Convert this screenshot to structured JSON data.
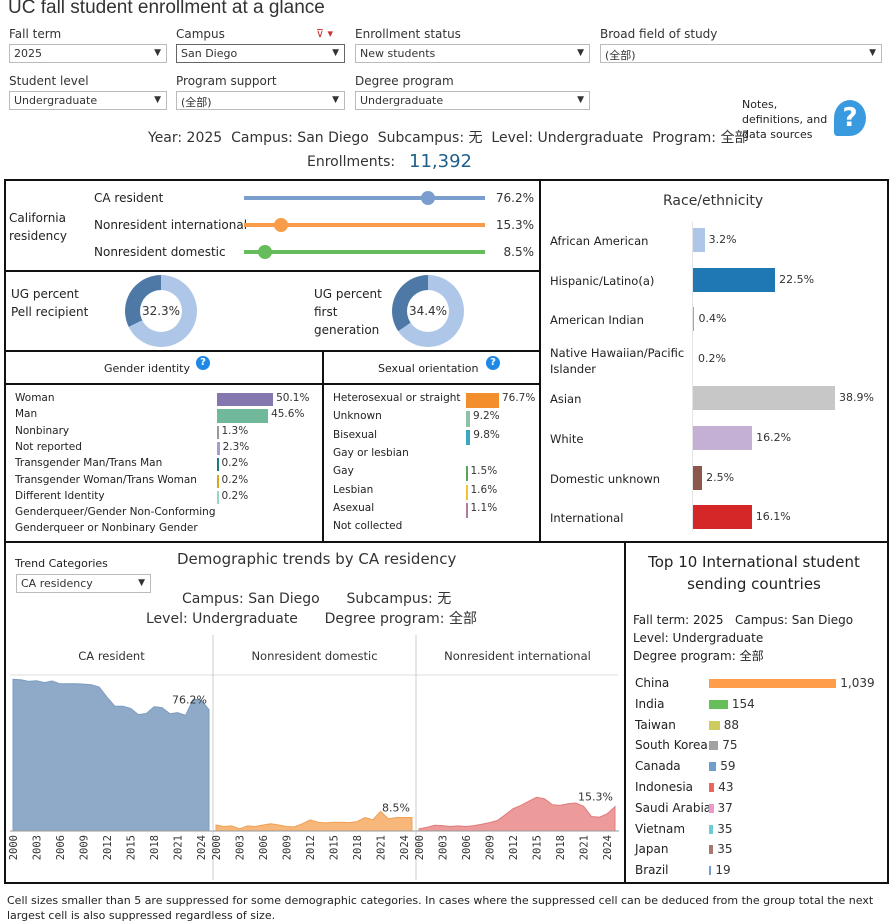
{
  "title": "UC fall student enrollment at a glance",
  "filters": [
    {
      "label": "Fall term",
      "value": "2025"
    },
    {
      "label": "Campus",
      "value": "San Diego"
    },
    {
      "label": "Enrollment status",
      "value": "New students"
    },
    {
      "label": "Broad field of study",
      "value": "(全部)"
    },
    {
      "label": "Student level",
      "value": "Undergraduate"
    },
    {
      "label": "Program support",
      "value": "(全部)"
    },
    {
      "label": "Degree program",
      "value": "Undergraduate"
    }
  ],
  "notes": {
    "text": "Notes, definitions, and data sources"
  },
  "summary": "Year: 2025  Campus: San Diego  Subcampus: 无  Level: Undergraduate  Program: 全部",
  "enrollments": {
    "label": "Enrollments:",
    "value": "11,392"
  },
  "residency": {
    "title": "California residency",
    "items": [
      {
        "label": "CA resident",
        "value": 76.2,
        "text": "76.2%",
        "color": "#7a9fcf"
      },
      {
        "label": "Nonresident international",
        "value": 15.3,
        "text": "15.3%",
        "color": "#f89c4a"
      },
      {
        "label": "Nonresident domestic",
        "value": 8.5,
        "text": "8.5%",
        "color": "#66bb5a"
      }
    ]
  },
  "donuts": [
    {
      "label": "UG percent Pell recipient",
      "value": 32.3,
      "text": "32.3%"
    },
    {
      "label": "UG percent first generation",
      "value": 34.4,
      "text": "34.4%"
    }
  ],
  "gender": {
    "title": "Gender identity",
    "items": [
      {
        "label": "Woman",
        "value": 50.1,
        "text": "50.1%",
        "color": "#8477b0"
      },
      {
        "label": "Man",
        "value": 45.6,
        "text": "45.6%",
        "color": "#6fb89a"
      },
      {
        "label": "Nonbinary",
        "value": 1.3,
        "text": "1.3%",
        "color": "#999"
      },
      {
        "label": "Not reported",
        "value": 2.3,
        "text": "2.3%",
        "color": "#a99dd0"
      },
      {
        "label": "Transgender Man/Trans Man",
        "value": 0.2,
        "text": "0.2%",
        "color": "#1a7a80"
      },
      {
        "label": "Transgender Woman/Trans Woman",
        "value": 0.2,
        "text": "0.2%",
        "color": "#d4a820"
      },
      {
        "label": "Different Identity",
        "value": 0.2,
        "text": "0.2%",
        "color": "#99d5c8"
      },
      {
        "label": "Genderqueer/Gender Non-Conforming",
        "value": null,
        "text": ""
      },
      {
        "label": "Genderqueer or Nonbinary Gender",
        "value": null,
        "text": ""
      }
    ]
  },
  "sexual": {
    "title": "Sexual orientation",
    "items": [
      {
        "label": "Heterosexual or straight",
        "value": 76.7,
        "text": "76.7%",
        "color": "#f28e2b"
      },
      {
        "label": "Unknown",
        "value": 9.2,
        "text": "9.2%",
        "color": "#8fc1a9"
      },
      {
        "label": "Bisexual",
        "value": 9.8,
        "text": "9.8%",
        "color": "#3aa8c1"
      },
      {
        "label": "Gay or lesbian",
        "value": null,
        "text": ""
      },
      {
        "label": "Gay",
        "value": 1.5,
        "text": "1.5%",
        "color": "#5aa55a"
      },
      {
        "label": "Lesbian",
        "value": 1.6,
        "text": "1.6%",
        "color": "#f1c232"
      },
      {
        "label": "Asexual",
        "value": 1.1,
        "text": "1.1%",
        "color": "#b07aa1"
      },
      {
        "label": "Not collected",
        "value": null,
        "text": ""
      }
    ]
  },
  "race": {
    "title": "Race/ethnicity",
    "items": [
      {
        "label": "African American",
        "value": 3.2,
        "text": "3.2%",
        "color": "#aec7e8"
      },
      {
        "label": "Hispanic/Latino(a)",
        "value": 22.5,
        "text": "22.5%",
        "color": "#1f77b4"
      },
      {
        "label": "American Indian",
        "value": 0.4,
        "text": "0.4%",
        "color": "#c49c94"
      },
      {
        "label": "Native Hawaiian/Pacific Islander",
        "value": 0.2,
        "text": "0.2%",
        "color": "#ddd"
      },
      {
        "label": "Asian",
        "value": 38.9,
        "text": "38.9%",
        "color": "#c7c7c7"
      },
      {
        "label": "White",
        "value": 16.2,
        "text": "16.2%",
        "color": "#c5b0d5"
      },
      {
        "label": "Domestic unknown",
        "value": 2.5,
        "text": "2.5%",
        "color": "#8c564b"
      },
      {
        "label": "International",
        "value": 16.1,
        "text": "16.1%",
        "color": "#d62728"
      }
    ]
  },
  "trend": {
    "categories_label": "Trend Categories",
    "categories_value": "CA residency",
    "title": "Demographic trends by CA residency",
    "sub1": "Campus: San Diego      Subcampus: 无",
    "sub2": "Level: Undergraduate      Degree program: 全部",
    "ticks": [
      "2000",
      "2003",
      "2006",
      "2009",
      "2012",
      "2015",
      "2018",
      "2021",
      "2024"
    ],
    "series": [
      {
        "name": "CA resident",
        "color": "#8eaac8",
        "stroke": "#7d9bc0",
        "last": "76.2%",
        "values": [
          95.3,
          95,
          94,
          94.4,
          93.2,
          94.2,
          92.5,
          92.5,
          92.5,
          92.3,
          91.9,
          90.4,
          84,
          78.4,
          78.4,
          77,
          73.1,
          73.8,
          78,
          77.5,
          73.7,
          74.4,
          72.7,
          82.8,
          82.2,
          76.2
        ]
      },
      {
        "name": "Nonresident domestic",
        "color": "#f7b77a",
        "stroke": "#f0a055",
        "last": "8.5%",
        "values": [
          3.8,
          2.8,
          3.2,
          1.3,
          3.2,
          2.8,
          3.8,
          4.5,
          3.8,
          2.8,
          2.6,
          4.5,
          7,
          5.5,
          5.1,
          5.5,
          5.5,
          5.3,
          5.9,
          8.5,
          7,
          12.3,
          7.6,
          8.5,
          8.5,
          8.5
        ]
      },
      {
        "name": "Nonresident international",
        "color": "#ec9a9a",
        "stroke": "#e07b7b",
        "last": "15.3%",
        "values": [
          1.3,
          2.3,
          3.6,
          3.4,
          2.8,
          3.2,
          2.8,
          3.4,
          4.2,
          5.3,
          6.6,
          10.2,
          14,
          16.1,
          18.7,
          21.2,
          20.3,
          16.5,
          16.1,
          17.1,
          17.6,
          15.5,
          9.1,
          8.7,
          10.8,
          15.3
        ]
      }
    ]
  },
  "intl": {
    "title": "Top 10 International student sending countries",
    "meta": [
      "Fall term: 2025   Campus: San Diego",
      "Level: Undergraduate",
      "Degree program: 全部"
    ],
    "items": [
      {
        "label": "China",
        "value": 1039,
        "text": "1,039",
        "color": "#ff9d4a"
      },
      {
        "label": "India",
        "value": 154,
        "text": "154",
        "color": "#67bf5c"
      },
      {
        "label": "Taiwan",
        "value": 88,
        "text": "88",
        "color": "#cdcc5d"
      },
      {
        "label": "South Korea",
        "value": 75,
        "text": "75",
        "color": "#a2a2a2"
      },
      {
        "label": "Canada",
        "value": 59,
        "text": "59",
        "color": "#729ece"
      },
      {
        "label": "Indonesia",
        "value": 43,
        "text": "43",
        "color": "#ed665d"
      },
      {
        "label": "Saudi Arabia",
        "value": 37,
        "text": "37",
        "color": "#ed97ca"
      },
      {
        "label": "Vietnam",
        "value": 35,
        "text": "35",
        "color": "#6dccda"
      },
      {
        "label": "Japan",
        "value": 35,
        "text": "35",
        "color": "#a8786e"
      },
      {
        "label": "Brazil",
        "value": 19,
        "text": "19",
        "color": "#729ece"
      }
    ]
  },
  "footer": "Cell sizes smaller than 5 are suppressed for some demographic categories. In cases where the suppressed cell can be deduced from the group total the next largest cell is also suppressed regardless of size."
}
